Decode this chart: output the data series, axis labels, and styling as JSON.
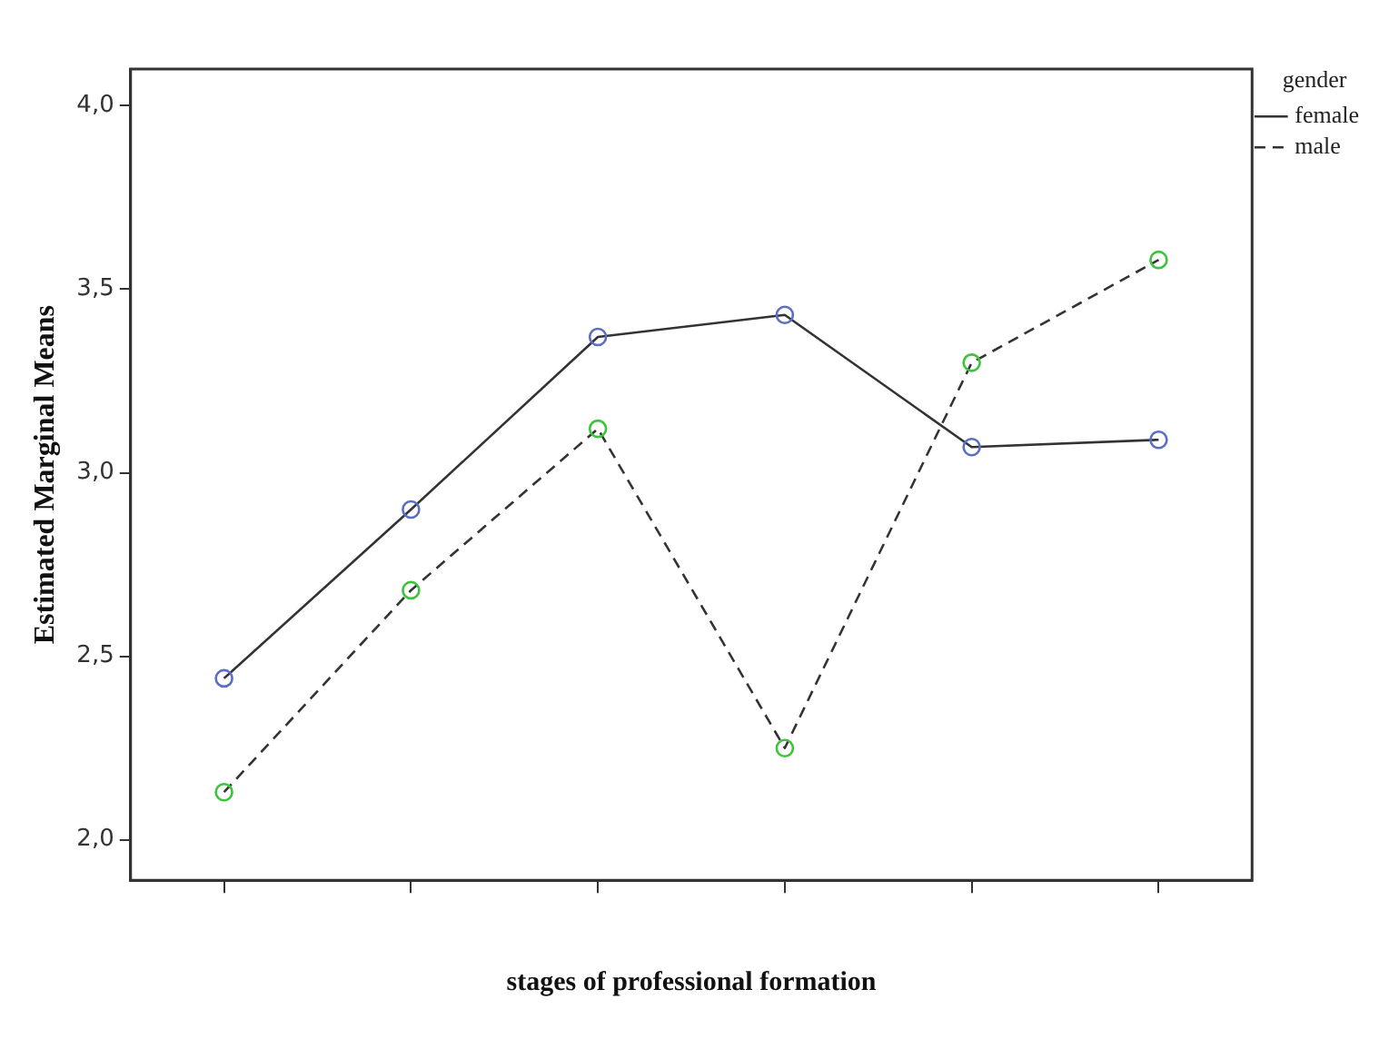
{
  "chart_data": {
    "type": "line",
    "xlabel": "stages of professional formation",
    "ylabel": "Estimated Marginal Means",
    "legend_title": "gender",
    "legend": "top right",
    "grid": false,
    "marker": "circle",
    "categories": [
      null,
      null,
      null,
      null,
      null,
      null
    ],
    "ylim": [
      1.89,
      4.1
    ],
    "yticks": [
      {
        "value": 2,
        "label": "2,0"
      },
      {
        "value": 2.5,
        "label": "2,5"
      },
      {
        "value": 3,
        "label": "3,0"
      },
      {
        "value": 3.5,
        "label": "3,5"
      },
      {
        "value": 4,
        "label": "4,0"
      }
    ],
    "series": [
      {
        "name": "female",
        "color": "#5a6fc4",
        "line_style": "solid",
        "values": [
          2.44,
          2.9,
          3.37,
          3.43,
          3.07,
          3.09
        ]
      },
      {
        "name": "male",
        "color": "#3cc43c",
        "line_style": "dashed",
        "values": [
          2.13,
          2.68,
          3.12,
          2.25,
          3.3,
          3.58
        ]
      }
    ]
  }
}
